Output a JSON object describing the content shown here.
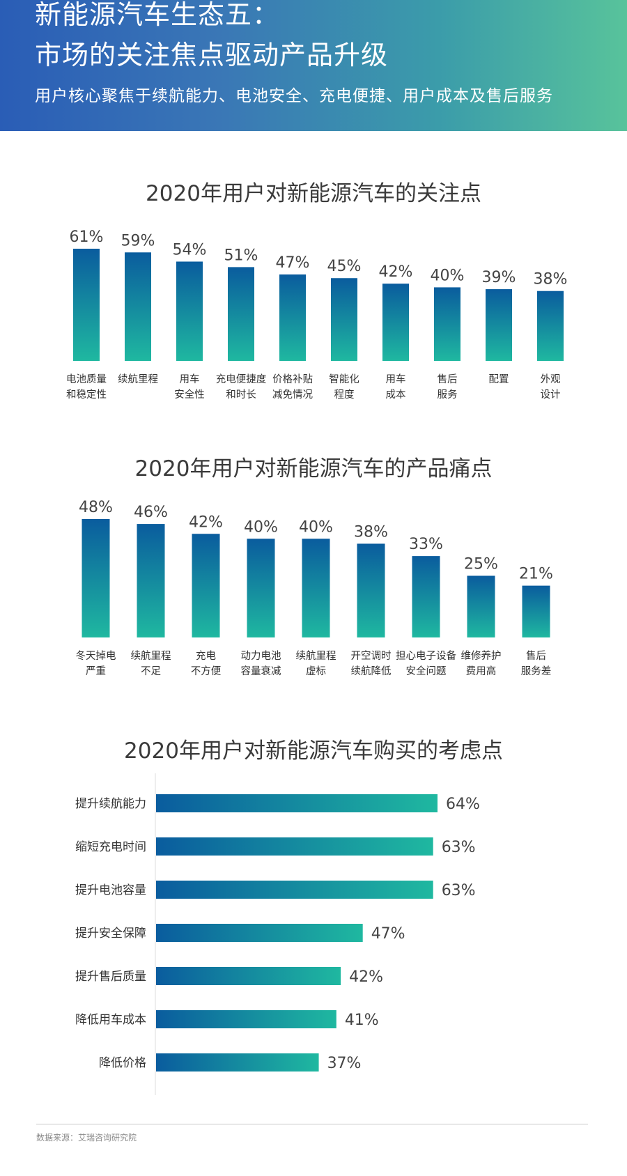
{
  "header": {
    "title_line1": "新能源汽车生态五：",
    "title_line2": "市场的关注焦点驱动产品升级",
    "subtitle": "用户核心聚焦于续航能力、电池安全、充电便捷、用户成本及售后服务"
  },
  "colors": {
    "bar_top": "#0a5c9e",
    "bar_bottom": "#1fb8a0",
    "bar_left": "#0a5c9e",
    "bar_right": "#1fb8a0"
  },
  "chart_data": [
    {
      "type": "bar",
      "title": "2020年用户对新能源汽车的关注点",
      "categories": [
        [
          "电池质量",
          "和稳定性"
        ],
        [
          "续航里程"
        ],
        [
          "用车",
          "安全性"
        ],
        [
          "充电便捷度",
          "和时长"
        ],
        [
          "价格补贴",
          "减免情况"
        ],
        [
          "智能化",
          "程度"
        ],
        [
          "用车",
          "成本"
        ],
        [
          "售后",
          "服务"
        ],
        [
          "配置"
        ],
        [
          "外观",
          "设计"
        ]
      ],
      "values": [
        61,
        59,
        54,
        51,
        47,
        45,
        42,
        40,
        39,
        38
      ],
      "value_labels": [
        "61%",
        "59%",
        "54%",
        "51%",
        "47%",
        "45%",
        "42%",
        "40%",
        "39%",
        "38%"
      ],
      "unit": "%",
      "ylim": [
        0,
        61
      ]
    },
    {
      "type": "bar",
      "title": "2020年用户对新能源汽车的产品痛点",
      "categories": [
        [
          "冬天掉电",
          "严重"
        ],
        [
          "续航里程",
          "不足"
        ],
        [
          "充电",
          "不方便"
        ],
        [
          "动力电池",
          "容量衰减"
        ],
        [
          "续航里程",
          "虚标"
        ],
        [
          "开空调时",
          "续航降低"
        ],
        [
          "担心电子设备",
          "安全问题"
        ],
        [
          "维修养护",
          "费用高"
        ],
        [
          "售后",
          "服务差"
        ]
      ],
      "values": [
        48,
        46,
        42,
        40,
        40,
        38,
        33,
        25,
        21
      ],
      "value_labels": [
        "48%",
        "46%",
        "42%",
        "40%",
        "40%",
        "38%",
        "33%",
        "25%",
        "21%"
      ],
      "unit": "%",
      "ylim": [
        0,
        48
      ]
    },
    {
      "type": "bar",
      "orientation": "horizontal",
      "title": "2020年用户对新能源汽车购买的考虑点",
      "categories": [
        "提升续航能力",
        "缩短充电时间",
        "提升电池容量",
        "提升安全保障",
        "提升售后质量",
        "降低用车成本",
        "降低价格"
      ],
      "values": [
        64,
        63,
        63,
        47,
        42,
        41,
        37
      ],
      "value_labels": [
        "64%",
        "63%",
        "63%",
        "47%",
        "42%",
        "41%",
        "37%"
      ],
      "unit": "%",
      "xlim": [
        0,
        64
      ]
    }
  ],
  "source": "数据来源：艾瑞咨询研究院"
}
